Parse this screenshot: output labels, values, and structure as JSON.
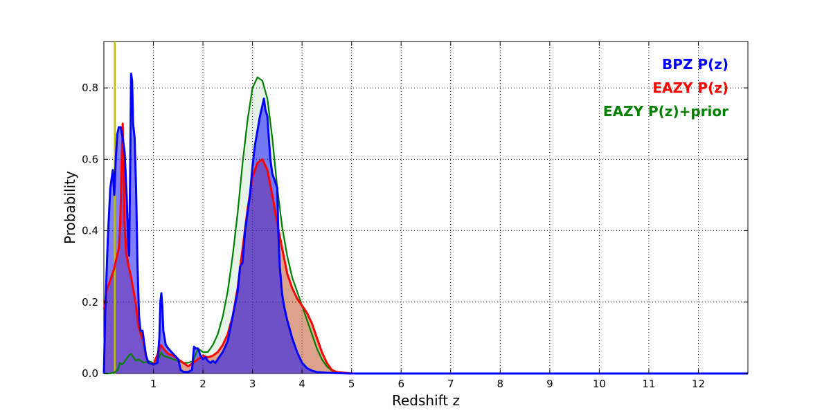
{
  "chart_data": {
    "type": "area",
    "xlabel": "Redshift z",
    "ylabel": "Probability",
    "xlim": [
      0,
      13
    ],
    "ylim": [
      0,
      0.93
    ],
    "x_ticks": [
      1,
      2,
      3,
      4,
      5,
      6,
      7,
      8,
      9,
      10,
      11,
      12
    ],
    "y_ticks": [
      0.0,
      0.2,
      0.4,
      0.6,
      0.8
    ],
    "x_tick_labels": [
      "1",
      "2",
      "3",
      "4",
      "5",
      "6",
      "7",
      "8",
      "9",
      "10",
      "11",
      "12"
    ],
    "y_tick_labels": [
      "0.0",
      "0.2",
      "0.4",
      "0.6",
      "0.8"
    ],
    "grid": true,
    "legend_position": "top-right",
    "vertical_line": {
      "x": 0.22,
      "color": "#bfbf00"
    },
    "legend": [
      "BPZ P(z)",
      "EAZY P(z)",
      "EAZY P(z)+prior"
    ],
    "series": [
      {
        "name": "BPZ P(z)",
        "color": "#0000ff",
        "fill": "#0000ff",
        "points": [
          [
            0,
            0.0
          ],
          [
            0.03,
            0.18
          ],
          [
            0.08,
            0.38
          ],
          [
            0.13,
            0.52
          ],
          [
            0.18,
            0.57
          ],
          [
            0.21,
            0.5
          ],
          [
            0.24,
            0.6
          ],
          [
            0.27,
            0.67
          ],
          [
            0.3,
            0.69
          ],
          [
            0.34,
            0.69
          ],
          [
            0.38,
            0.66
          ],
          [
            0.42,
            0.62
          ],
          [
            0.46,
            0.5
          ],
          [
            0.49,
            0.36
          ],
          [
            0.51,
            0.33
          ],
          [
            0.53,
            0.56
          ],
          [
            0.55,
            0.84
          ],
          [
            0.57,
            0.82
          ],
          [
            0.59,
            0.7
          ],
          [
            0.62,
            0.66
          ],
          [
            0.65,
            0.52
          ],
          [
            0.68,
            0.3
          ],
          [
            0.71,
            0.16
          ],
          [
            0.74,
            0.12
          ],
          [
            0.78,
            0.12
          ],
          [
            0.81,
            0.09
          ],
          [
            0.85,
            0.05
          ],
          [
            0.9,
            0.03
          ],
          [
            1.0,
            0.025
          ],
          [
            1.08,
            0.03
          ],
          [
            1.12,
            0.1
          ],
          [
            1.14,
            0.2
          ],
          [
            1.16,
            0.225
          ],
          [
            1.18,
            0.19
          ],
          [
            1.2,
            0.12
          ],
          [
            1.25,
            0.08
          ],
          [
            1.3,
            0.07
          ],
          [
            1.4,
            0.055
          ],
          [
            1.5,
            0.04
          ],
          [
            1.55,
            0.01
          ],
          [
            1.6,
            0.005
          ],
          [
            1.7,
            0.004
          ],
          [
            1.78,
            0.01
          ],
          [
            1.8,
            0.045
          ],
          [
            1.82,
            0.075
          ],
          [
            1.85,
            0.07
          ],
          [
            1.9,
            0.07
          ],
          [
            1.95,
            0.05
          ],
          [
            2.0,
            0.04
          ],
          [
            2.05,
            0.045
          ],
          [
            2.1,
            0.035
          ],
          [
            2.15,
            0.03
          ],
          [
            2.2,
            0.035
          ],
          [
            2.25,
            0.03
          ],
          [
            2.3,
            0.04
          ],
          [
            2.4,
            0.06
          ],
          [
            2.5,
            0.09
          ],
          [
            2.6,
            0.16
          ],
          [
            2.7,
            0.23
          ],
          [
            2.75,
            0.3
          ],
          [
            2.8,
            0.31
          ],
          [
            2.85,
            0.4
          ],
          [
            2.9,
            0.45
          ],
          [
            2.95,
            0.5
          ],
          [
            3.0,
            0.58
          ],
          [
            3.05,
            0.64
          ],
          [
            3.1,
            0.68
          ],
          [
            3.15,
            0.72
          ],
          [
            3.2,
            0.75
          ],
          [
            3.23,
            0.77
          ],
          [
            3.26,
            0.74
          ],
          [
            3.3,
            0.72
          ],
          [
            3.33,
            0.66
          ],
          [
            3.36,
            0.6
          ],
          [
            3.4,
            0.56
          ],
          [
            3.45,
            0.54
          ],
          [
            3.5,
            0.52
          ],
          [
            3.52,
            0.4
          ],
          [
            3.55,
            0.3
          ],
          [
            3.6,
            0.22
          ],
          [
            3.65,
            0.18
          ],
          [
            3.7,
            0.15
          ],
          [
            3.8,
            0.1
          ],
          [
            3.9,
            0.06
          ],
          [
            4.0,
            0.03
          ],
          [
            4.1,
            0.015
          ],
          [
            4.2,
            0.008
          ],
          [
            4.3,
            0.004
          ],
          [
            4.5,
            0.002
          ],
          [
            5,
            0.0
          ],
          [
            12,
            0.0
          ],
          [
            13,
            0.0
          ]
        ]
      },
      {
        "name": "EAZY P(z)",
        "color": "#ff0000",
        "fill": "#d04020",
        "points": [
          [
            0,
            0.18
          ],
          [
            0.02,
            0.19
          ],
          [
            0.05,
            0.23
          ],
          [
            0.1,
            0.25
          ],
          [
            0.15,
            0.27
          ],
          [
            0.2,
            0.29
          ],
          [
            0.25,
            0.32
          ],
          [
            0.3,
            0.35
          ],
          [
            0.33,
            0.42
          ],
          [
            0.36,
            0.6
          ],
          [
            0.38,
            0.7
          ],
          [
            0.4,
            0.58
          ],
          [
            0.42,
            0.42
          ],
          [
            0.45,
            0.34
          ],
          [
            0.5,
            0.3
          ],
          [
            0.55,
            0.27
          ],
          [
            0.6,
            0.23
          ],
          [
            0.65,
            0.19
          ],
          [
            0.7,
            0.13
          ],
          [
            0.8,
            0.09
          ],
          [
            0.85,
            0.05
          ],
          [
            0.9,
            0.03
          ],
          [
            1.0,
            0.025
          ],
          [
            1.1,
            0.06
          ],
          [
            1.15,
            0.08
          ],
          [
            1.2,
            0.07
          ],
          [
            1.3,
            0.055
          ],
          [
            1.4,
            0.05
          ],
          [
            1.5,
            0.04
          ],
          [
            1.6,
            0.03
          ],
          [
            1.7,
            0.02
          ],
          [
            1.8,
            0.03
          ],
          [
            1.9,
            0.04
          ],
          [
            2.0,
            0.05
          ],
          [
            2.1,
            0.045
          ],
          [
            2.2,
            0.05
          ],
          [
            2.3,
            0.06
          ],
          [
            2.4,
            0.08
          ],
          [
            2.5,
            0.11
          ],
          [
            2.6,
            0.16
          ],
          [
            2.7,
            0.24
          ],
          [
            2.8,
            0.35
          ],
          [
            2.9,
            0.46
          ],
          [
            3.0,
            0.55
          ],
          [
            3.1,
            0.59
          ],
          [
            3.2,
            0.6
          ],
          [
            3.3,
            0.57
          ],
          [
            3.4,
            0.5
          ],
          [
            3.5,
            0.42
          ],
          [
            3.6,
            0.35
          ],
          [
            3.7,
            0.28
          ],
          [
            3.8,
            0.24
          ],
          [
            3.9,
            0.21
          ],
          [
            4.0,
            0.19
          ],
          [
            4.1,
            0.17
          ],
          [
            4.2,
            0.14
          ],
          [
            4.3,
            0.1
          ],
          [
            4.4,
            0.06
          ],
          [
            4.5,
            0.03
          ],
          [
            4.6,
            0.01
          ],
          [
            4.7,
            0.004
          ],
          [
            5,
            0.0
          ],
          [
            12,
            0.0
          ],
          [
            13,
            0.0
          ]
        ]
      },
      {
        "name": "EAZY P(z)+prior",
        "color": "#008000",
        "fill": "#008000",
        "points": [
          [
            0,
            0.0
          ],
          [
            0.1,
            0.0
          ],
          [
            0.2,
            0.002
          ],
          [
            0.28,
            0.01
          ],
          [
            0.32,
            0.03
          ],
          [
            0.36,
            0.025
          ],
          [
            0.4,
            0.03
          ],
          [
            0.45,
            0.04
          ],
          [
            0.5,
            0.05
          ],
          [
            0.55,
            0.055
          ],
          [
            0.6,
            0.045
          ],
          [
            0.65,
            0.035
          ],
          [
            0.7,
            0.04
          ],
          [
            0.8,
            0.03
          ],
          [
            0.9,
            0.035
          ],
          [
            1.0,
            0.03
          ],
          [
            1.1,
            0.04
          ],
          [
            1.15,
            0.06
          ],
          [
            1.2,
            0.05
          ],
          [
            1.3,
            0.045
          ],
          [
            1.4,
            0.04
          ],
          [
            1.5,
            0.035
          ],
          [
            1.6,
            0.03
          ],
          [
            1.7,
            0.03
          ],
          [
            1.8,
            0.035
          ],
          [
            1.9,
            0.07
          ],
          [
            2.0,
            0.06
          ],
          [
            2.1,
            0.06
          ],
          [
            2.2,
            0.08
          ],
          [
            2.3,
            0.11
          ],
          [
            2.4,
            0.16
          ],
          [
            2.5,
            0.23
          ],
          [
            2.6,
            0.33
          ],
          [
            2.7,
            0.45
          ],
          [
            2.8,
            0.59
          ],
          [
            2.9,
            0.71
          ],
          [
            3.0,
            0.8
          ],
          [
            3.1,
            0.83
          ],
          [
            3.2,
            0.82
          ],
          [
            3.3,
            0.77
          ],
          [
            3.4,
            0.66
          ],
          [
            3.5,
            0.52
          ],
          [
            3.6,
            0.41
          ],
          [
            3.7,
            0.33
          ],
          [
            3.8,
            0.27
          ],
          [
            3.9,
            0.23
          ],
          [
            4.0,
            0.19
          ],
          [
            4.1,
            0.15
          ],
          [
            4.2,
            0.11
          ],
          [
            4.3,
            0.07
          ],
          [
            4.4,
            0.04
          ],
          [
            4.5,
            0.02
          ],
          [
            4.6,
            0.008
          ],
          [
            4.7,
            0.002
          ],
          [
            5,
            0.0
          ],
          [
            12,
            0.0
          ],
          [
            13,
            0.0
          ]
        ]
      }
    ]
  }
}
